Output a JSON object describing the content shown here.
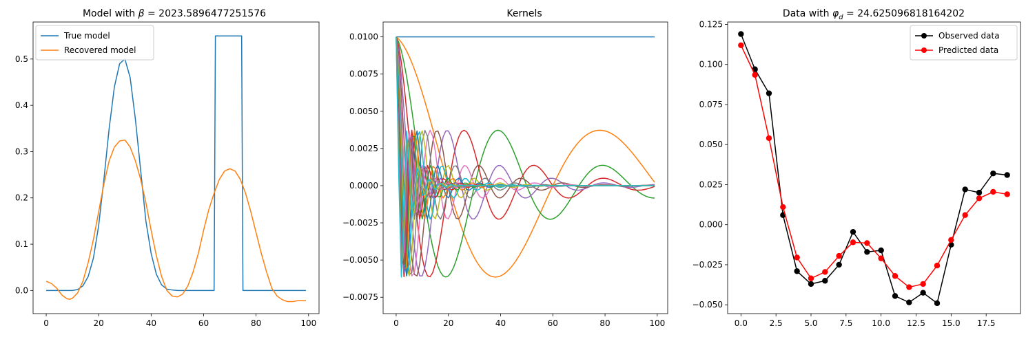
{
  "chart_data": [
    {
      "type": "line",
      "title_prefix": "Model with ",
      "title_symbol": "β",
      "title_suffix": " = 2023.5896477251576",
      "xlim": [
        -5,
        104
      ],
      "ylim": [
        -0.05,
        0.58
      ],
      "xticks": [
        0,
        20,
        40,
        60,
        80,
        100
      ],
      "xtick_labels": [
        "0",
        "20",
        "40",
        "60",
        "80",
        "100"
      ],
      "yticks": [
        0.0,
        0.1,
        0.2,
        0.3,
        0.4,
        0.5
      ],
      "ytick_labels": [
        "0.0",
        "0.1",
        "0.2",
        "0.3",
        "0.4",
        "0.5"
      ],
      "legend": "top-left",
      "series": [
        {
          "name": "True model",
          "color": "#1f77b4",
          "x": [
            0,
            5,
            10,
            12,
            14,
            16,
            18,
            20,
            22,
            24,
            26,
            28,
            30,
            32,
            34,
            36,
            38,
            40,
            42,
            44,
            46,
            48,
            50,
            55,
            60,
            64,
            64.5,
            65,
            74,
            74.5,
            75,
            80,
            85,
            90,
            95,
            99
          ],
          "y": [
            0,
            0,
            0,
            0.002,
            0.01,
            0.03,
            0.07,
            0.14,
            0.24,
            0.35,
            0.44,
            0.49,
            0.5,
            0.46,
            0.37,
            0.26,
            0.15,
            0.08,
            0.035,
            0.012,
            0.003,
            0.001,
            0,
            0,
            0,
            0,
            0.55,
            0.55,
            0.55,
            0.55,
            0,
            0,
            0,
            0,
            0,
            0
          ]
        },
        {
          "name": "Recovered model",
          "color": "#ff7f0e",
          "x": [
            0,
            2,
            4,
            6,
            8,
            9,
            10,
            12,
            14,
            16,
            18,
            20,
            22,
            24,
            26,
            28,
            30,
            32,
            34,
            36,
            38,
            40,
            42,
            44,
            46,
            48,
            50,
            52,
            54,
            56,
            58,
            60,
            62,
            64,
            66,
            68,
            70,
            72,
            74,
            76,
            78,
            80,
            82,
            84,
            86,
            88,
            90,
            92,
            94,
            96,
            99
          ],
          "y": [
            0.02,
            0.015,
            0.005,
            -0.01,
            -0.018,
            -0.019,
            -0.017,
            -0.005,
            0.02,
            0.06,
            0.11,
            0.17,
            0.23,
            0.28,
            0.31,
            0.323,
            0.325,
            0.31,
            0.28,
            0.24,
            0.19,
            0.13,
            0.075,
            0.03,
            0.0,
            -0.012,
            -0.014,
            -0.008,
            0.01,
            0.04,
            0.08,
            0.13,
            0.175,
            0.21,
            0.24,
            0.258,
            0.263,
            0.258,
            0.24,
            0.21,
            0.17,
            0.125,
            0.08,
            0.04,
            0.005,
            -0.012,
            -0.02,
            -0.024,
            -0.024,
            -0.022,
            -0.022
          ]
        }
      ]
    },
    {
      "type": "line",
      "title": "Kernels",
      "xlim": [
        -5,
        104
      ],
      "ylim": [
        -0.0086,
        0.011
      ],
      "xticks": [
        0,
        20,
        40,
        60,
        80,
        100
      ],
      "xtick_labels": [
        "0",
        "20",
        "40",
        "60",
        "80",
        "100"
      ],
      "yticks": [
        -0.0075,
        -0.005,
        -0.0025,
        0.0,
        0.0025,
        0.005,
        0.0075,
        0.01
      ],
      "ytick_labels": [
        "−0.0075",
        "−0.0050",
        "−0.0025",
        "0.0000",
        "0.0025",
        "0.0050",
        "0.0075",
        "0.0100"
      ],
      "kernel_count": 20,
      "kernel_x_max": 99,
      "colors": [
        "#1f77b4",
        "#ff7f0e",
        "#2ca02c",
        "#d62728",
        "#9467bd",
        "#8c564b",
        "#e377c2",
        "#7f7f7f",
        "#bcbd22",
        "#17becf"
      ]
    },
    {
      "type": "line",
      "title_prefix": "Data with ",
      "title_symbol": "φ",
      "title_subscript": "d",
      "title_suffix": " = 24.625096818164202",
      "xlim": [
        -0.95,
        19.95
      ],
      "ylim": [
        -0.0555,
        0.1265
      ],
      "xticks": [
        0.0,
        2.5,
        5.0,
        7.5,
        10.0,
        12.5,
        15.0,
        17.5
      ],
      "xtick_labels": [
        "0.0",
        "2.5",
        "5.0",
        "7.5",
        "10.0",
        "12.5",
        "15.0",
        "17.5"
      ],
      "yticks": [
        -0.05,
        -0.025,
        0.0,
        0.025,
        0.05,
        0.075,
        0.1,
        0.125
      ],
      "ytick_labels": [
        "−0.050",
        "−0.025",
        "0.000",
        "0.025",
        "0.050",
        "0.075",
        "0.100",
        "0.125"
      ],
      "legend": "top-right",
      "series": [
        {
          "name": "Observed data",
          "color": "#000000",
          "x": [
            0,
            1,
            2,
            3,
            4,
            5,
            6,
            7,
            8,
            9,
            10,
            11,
            12,
            13,
            14,
            15,
            16,
            17,
            18,
            19
          ],
          "y": [
            0.119,
            0.097,
            0.082,
            0.006,
            -0.029,
            -0.037,
            -0.035,
            -0.025,
            -0.0045,
            -0.017,
            -0.016,
            -0.0445,
            -0.0485,
            -0.0425,
            -0.049,
            -0.0125,
            0.022,
            0.02,
            0.032,
            0.031
          ]
        },
        {
          "name": "Predicted data",
          "color": "#ff0000",
          "x": [
            0,
            1,
            2,
            3,
            4,
            5,
            6,
            7,
            8,
            9,
            10,
            11,
            12,
            13,
            14,
            15,
            16,
            17,
            18,
            19
          ],
          "y": [
            0.112,
            0.0935,
            0.054,
            0.011,
            -0.0205,
            -0.0335,
            -0.0295,
            -0.0195,
            -0.011,
            -0.0115,
            -0.021,
            -0.032,
            -0.039,
            -0.037,
            -0.0255,
            -0.0095,
            0.006,
            0.0165,
            0.0205,
            0.019
          ]
        }
      ]
    }
  ]
}
